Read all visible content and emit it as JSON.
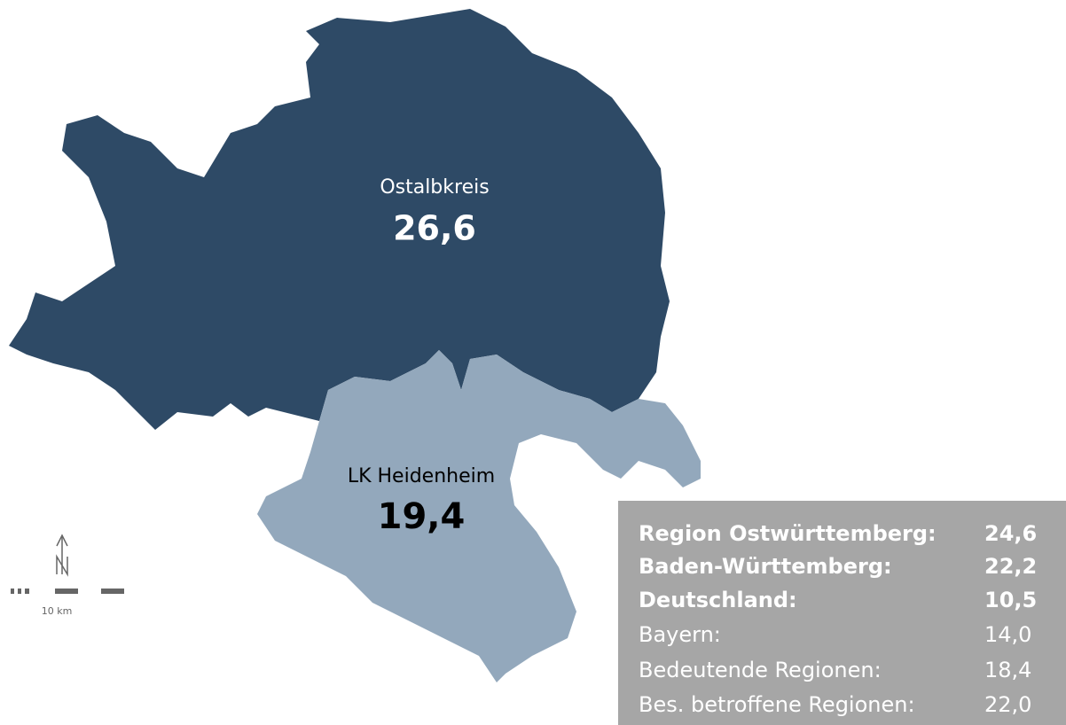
{
  "regions": [
    {
      "name": "Ostalbkreis",
      "value": "26,6"
    },
    {
      "name": "LK Heidenheim",
      "value": "19,4"
    }
  ],
  "scale_label": "10 km",
  "table": {
    "rows": [
      [
        "Region Ostwürttemberg:",
        "24,6"
      ],
      [
        "Baden-Württemberg:",
        "22,2"
      ],
      [
        "Deutschland:",
        "10,5"
      ],
      [
        "Bayern:",
        "14,0"
      ],
      [
        "Bedeutende Regionen:",
        "18,4"
      ],
      [
        "Bes. betroffene Regionen:",
        "22,0"
      ]
    ]
  }
}
